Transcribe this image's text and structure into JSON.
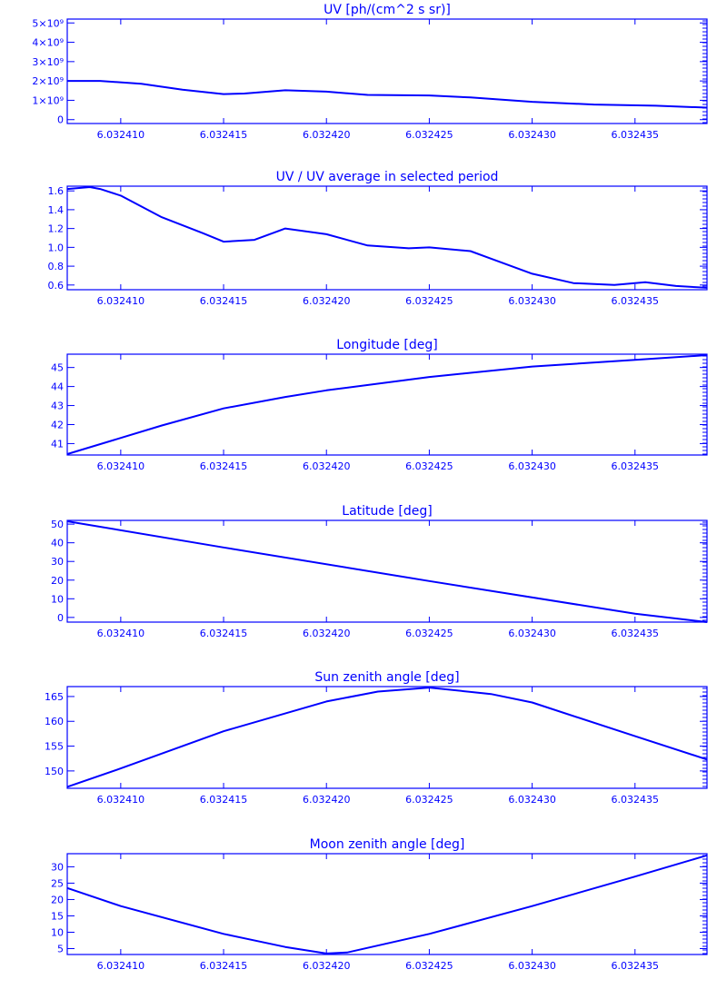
{
  "chart_data": [
    {
      "type": "line",
      "title": "UV [ph/(cm^2 s sr)]",
      "x_ticks": [
        "6.032410",
        "6.032415",
        "6.032420",
        "6.032425",
        "6.032430",
        "6.032435"
      ],
      "x_tick_values": [
        6.03241,
        6.032415,
        6.03242,
        6.032425,
        6.03243,
        6.032435
      ],
      "xlim": [
        6.0324074,
        6.0324385
      ],
      "y_ticks": [
        "0",
        "1×10⁹",
        "2×10⁹",
        "3×10⁹",
        "4×10⁹",
        "5×10⁹"
      ],
      "y_tick_values": [
        0,
        1000000000.0,
        2000000000.0,
        3000000000.0,
        4000000000.0,
        5000000000.0
      ],
      "ylim": [
        -200000000.0,
        5200000000.0
      ],
      "x": [
        6.0324074,
        6.032409,
        6.032411,
        6.032413,
        6.032415,
        6.032416,
        6.032418,
        6.03242,
        6.032422,
        6.032425,
        6.032427,
        6.03243,
        6.032433,
        6.032436,
        6.0324385
      ],
      "y": [
        2000000000.0,
        2000000000.0,
        1850000000.0,
        1550000000.0,
        1320000000.0,
        1350000000.0,
        1520000000.0,
        1450000000.0,
        1280000000.0,
        1250000000.0,
        1150000000.0,
        920000000.0,
        780000000.0,
        720000000.0,
        620000000.0
      ]
    },
    {
      "type": "line",
      "title": "UV / UV average in selected period",
      "x_ticks": [
        "6.032410",
        "6.032415",
        "6.032420",
        "6.032425",
        "6.032430",
        "6.032435"
      ],
      "x_tick_values": [
        6.03241,
        6.032415,
        6.03242,
        6.032425,
        6.03243,
        6.032435
      ],
      "xlim": [
        6.0324074,
        6.0324385
      ],
      "y_ticks": [
        "0.6",
        "0.8",
        "1.0",
        "1.2",
        "1.4",
        "1.6"
      ],
      "y_tick_values": [
        0.6,
        0.8,
        1.0,
        1.2,
        1.4,
        1.6
      ],
      "ylim": [
        0.55,
        1.65
      ],
      "x": [
        6.0324074,
        6.0324085,
        6.032409,
        6.03241,
        6.032412,
        6.032414,
        6.032415,
        6.0324165,
        6.032418,
        6.03242,
        6.032422,
        6.032424,
        6.032425,
        6.032427,
        6.032428,
        6.03243,
        6.032432,
        6.032434,
        6.0324355,
        6.032437,
        6.0324385
      ],
      "y": [
        1.62,
        1.64,
        1.62,
        1.55,
        1.32,
        1.15,
        1.06,
        1.08,
        1.2,
        1.14,
        1.02,
        0.99,
        1.0,
        0.96,
        0.88,
        0.72,
        0.62,
        0.6,
        0.63,
        0.59,
        0.57
      ]
    },
    {
      "type": "line",
      "title": "Longitude [deg]",
      "x_ticks": [
        "6.032410",
        "6.032415",
        "6.032420",
        "6.032425",
        "6.032430",
        "6.032435"
      ],
      "x_tick_values": [
        6.03241,
        6.032415,
        6.03242,
        6.032425,
        6.03243,
        6.032435
      ],
      "xlim": [
        6.0324074,
        6.0324385
      ],
      "y_ticks": [
        "41",
        "42",
        "43",
        "44",
        "45"
      ],
      "y_tick_values": [
        41,
        42,
        43,
        44,
        45
      ],
      "ylim": [
        40.4,
        45.7
      ],
      "x": [
        6.0324074,
        6.03241,
        6.032412,
        6.032415,
        6.032418,
        6.03242,
        6.032425,
        6.03243,
        6.032435,
        6.0324385
      ],
      "y": [
        40.45,
        41.3,
        41.95,
        42.85,
        43.45,
        43.8,
        44.5,
        45.05,
        45.4,
        45.65
      ]
    },
    {
      "type": "line",
      "title": "Latitude [deg]",
      "x_ticks": [
        "6.032410",
        "6.032415",
        "6.032420",
        "6.032425",
        "6.032430",
        "6.032435"
      ],
      "x_tick_values": [
        6.03241,
        6.032415,
        6.03242,
        6.032425,
        6.03243,
        6.032435
      ],
      "xlim": [
        6.0324074,
        6.0324385
      ],
      "y_ticks": [
        "0",
        "10",
        "20",
        "30",
        "40",
        "50"
      ],
      "y_tick_values": [
        0,
        10,
        20,
        30,
        40,
        50
      ],
      "ylim": [
        -2.5,
        52
      ],
      "x": [
        6.0324074,
        6.032415,
        6.032425,
        6.032435,
        6.0324385
      ],
      "y": [
        51.5,
        37.5,
        19.5,
        2.0,
        -2.5
      ]
    },
    {
      "type": "line",
      "title": "Sun zenith angle [deg]",
      "x_ticks": [
        "6.032410",
        "6.032415",
        "6.032420",
        "6.032425",
        "6.032430",
        "6.032435"
      ],
      "x_tick_values": [
        6.03241,
        6.032415,
        6.03242,
        6.032425,
        6.03243,
        6.032435
      ],
      "xlim": [
        6.0324074,
        6.0324385
      ],
      "y_ticks": [
        "150",
        "155",
        "160",
        "165"
      ],
      "y_tick_values": [
        150,
        155,
        160,
        165
      ],
      "ylim": [
        146.5,
        167
      ],
      "x": [
        6.0324074,
        6.03241,
        6.032415,
        6.03242,
        6.0324225,
        6.032425,
        6.032428,
        6.03243,
        6.032435,
        6.0324385
      ],
      "y": [
        146.8,
        150.5,
        158.0,
        164.0,
        166.0,
        166.8,
        165.5,
        163.8,
        157.0,
        152.3
      ]
    },
    {
      "type": "line",
      "title": "Moon zenith angle [deg]",
      "x_ticks": [
        "6.032410",
        "6.032415",
        "6.032420",
        "6.032425",
        "6.032430",
        "6.032435"
      ],
      "x_tick_values": [
        6.03241,
        6.032415,
        6.03242,
        6.032425,
        6.03243,
        6.032435
      ],
      "xlim": [
        6.0324074,
        6.0324385
      ],
      "y_ticks": [
        "5",
        "10",
        "15",
        "20",
        "25",
        "30"
      ],
      "y_tick_values": [
        5,
        10,
        15,
        20,
        25,
        30
      ],
      "ylim": [
        3.2,
        34
      ],
      "x": [
        6.0324074,
        6.03241,
        6.032415,
        6.032418,
        6.03242,
        6.032421,
        6.032425,
        6.03243,
        6.032435,
        6.0324385
      ],
      "y": [
        23.5,
        18.0,
        9.5,
        5.5,
        3.5,
        3.8,
        9.5,
        18.0,
        27.0,
        33.5
      ]
    }
  ]
}
